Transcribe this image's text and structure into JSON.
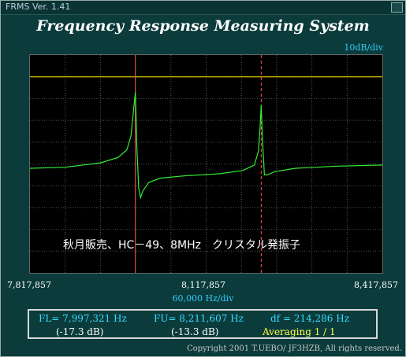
{
  "window": {
    "title": "FRMS   Ver. 1.41"
  },
  "app_title": "Frequency Response Measuring System",
  "y_scale_label": "10dB/div",
  "caption": "秋月販売、HC－49、8MHz　クリスタル発振子",
  "x_axis": {
    "ticks": [
      "7,817,857",
      "8,117,857",
      "8,417,857"
    ],
    "unit_label": "60,000  Hz/div"
  },
  "readout": {
    "fl_label": "FL= 7,997,321  Hz",
    "fl_db": "(-17.3 dB)",
    "fu_label": "FU= 8,211,607  Hz",
    "fu_db": "(-13.3 dB)",
    "df_label": "df = 214,286  Hz",
    "averaging_label": "Averaging   1 / 1"
  },
  "copyright": "Copyright 2001 T.UEBO/ JF3HZB, All rights reserved.",
  "colors": {
    "trace": "#33ee33",
    "reference": "#ffee00",
    "marker_lower": "#ff5555",
    "marker_upper": "#ff5555",
    "grid": "#555555"
  },
  "chart_data": {
    "type": "line",
    "x_range": [
      7817857,
      8417857
    ],
    "x_per_div": 60000,
    "y_per_div_db": 10,
    "grid": true,
    "reference_level_div": 1,
    "markers": [
      {
        "name": "FL",
        "x": 7997321,
        "db": -17.3,
        "style": "solid"
      },
      {
        "name": "FU",
        "x": 8211607,
        "db": -13.3,
        "style": "dashed"
      }
    ],
    "series": [
      {
        "x": [
          7817857,
          7877857,
          7937857,
          7967857,
          7982857,
          7990000,
          7994000,
          7997321,
          8000000,
          8003000,
          8006000,
          8010000,
          8020000,
          8040000,
          8080000,
          8140000,
          8180000,
          8200000,
          8207000,
          8210000,
          8211607,
          8214000,
          8217000,
          8222000,
          8235000,
          8270000,
          8340000,
          8417857
        ],
        "y_div": [
          5.2,
          5.15,
          4.95,
          4.7,
          4.35,
          3.7,
          2.6,
          1.7,
          4.3,
          6.1,
          6.55,
          6.25,
          5.85,
          5.65,
          5.55,
          5.45,
          5.3,
          5.05,
          4.4,
          3.2,
          2.3,
          4.0,
          5.5,
          5.5,
          5.35,
          5.2,
          5.1,
          5.05
        ]
      }
    ]
  }
}
